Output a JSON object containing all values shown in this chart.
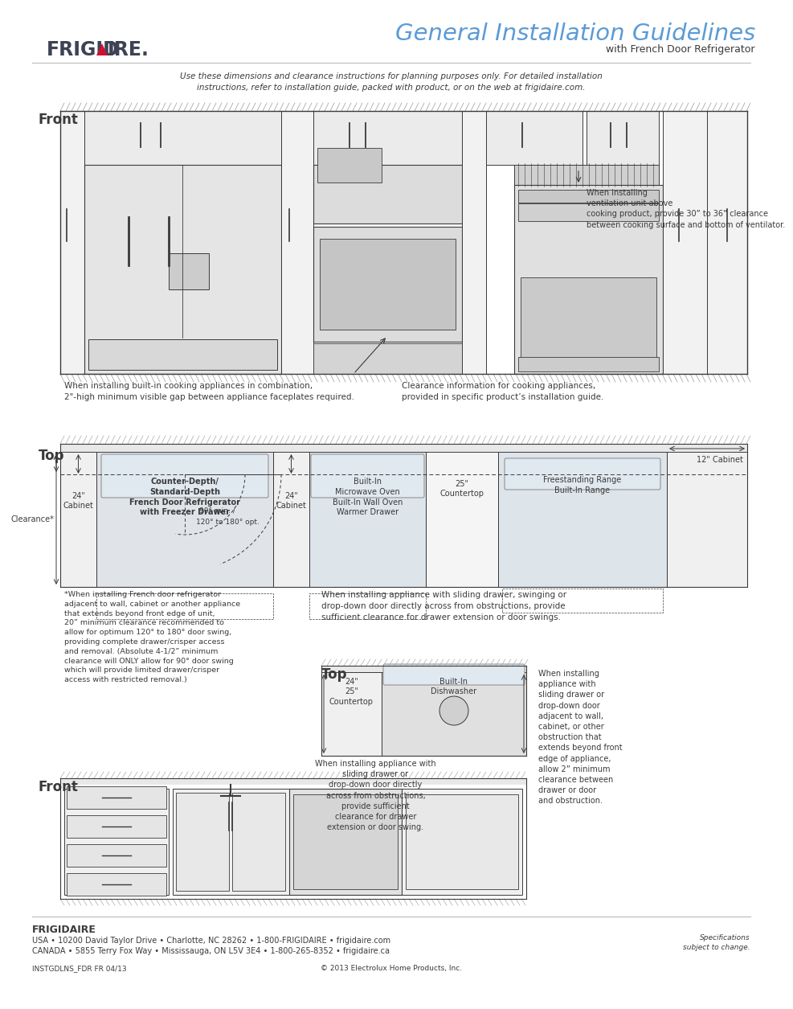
{
  "title": "General Installation Guidelines",
  "subtitle": "with French Door Refrigerator",
  "page_note": "Use these dimensions and clearance instructions for planning purposes only. For detailed installation\ninstructions, refer to installation guide, packed with product, or on the web at frigidaire.com.",
  "front_label": "Front",
  "top_label": "Top",
  "front_label2": "Front",
  "top_label2": "Top",
  "caption1": "When installing built-in cooking appliances in combination,\n2\"-high minimum visible gap between appliance faceplates required.",
  "caption2": "Clearance information for cooking appliances,\nprovided in specific product’s installation guide.",
  "caption_vent": "When installing\nventilation unit above\ncooking product, provide 30” to 36” clearance\nbetween cooking surface and bottom of ventilator.",
  "top_note1": "Counter-Depth/\nStandard-Depth\nFrench Door Refrigerator\nwith Freezer Drawer",
  "top_24cab1": "24\"\nCabinet",
  "top_24cab2": "24\"\nCabinet",
  "top_bioven": "Built-In\nMicrowave Oven\nBuilt-In Wall Oven\nWarmer Drawer",
  "top_25ct": "25\"\nCountertop",
  "top_fsr": "Freestanding Range\nBuilt-In Range",
  "top_12cab": "12\" Cabinet",
  "clearance_label": "Clearance*",
  "angle_label1": "90° min. /",
  "angle_label2": "120° to 180° opt.",
  "footnote_star": "*When installing French door refrigerator\nadjacent to wall, cabinet or another appliance\nthat extends beyond front edge of unit,\n20” minimum clearance recommended to\nallow for optimum 120° to 180° door swing,\nproviding complete drawer/crisper access\nand removal. (Absolute 4-1/2” minimum\nclearance will ONLY allow for 90° door swing\nwhich will provide limited drawer/crisper\naccess with restricted removal.)",
  "sliding_note": "When installing appliance with sliding drawer, swinging or\ndrop-down door directly across from obstructions, provide\nsufficient clearance for drawer extension or door swings.",
  "dishwasher_label": "Built-In\nDishwasher",
  "countertop_label": "24\"\n25\"\nCountertop",
  "dishwasher_note": "When installing appliance with\nsliding drawer or\ndrop-down door directly\nacross from obstructions,\nprovide sufficient\nclearance for drawer\nextension or door swing.",
  "side_note": "When installing\nappliance with\nsliding drawer or\ndrop-down door\nadjacent to wall,\ncabinet, or other\nobstruction that\nextends beyond front\nedge of appliance,\nallow 2” minimum\nclearance between\ndrawer or door\nand obstruction.",
  "footer_brand": "FRIGIDAIRE",
  "footer_usa": "USA • 10200 David Taylor Drive • Charlotte, NC 28262 • 1-800-FRIGIDAIRE • frigidaire.com",
  "footer_canada": "CANADA • 5855 Terry Fox Way • Mississauga, ON L5V 3E4 • 1-800-265-8352 • frigidaire.ca",
  "footer_code": "INSTGDLNS_FDR FR 04/13",
  "footer_copy": "© 2013 Electrolux Home Products, Inc.",
  "footer_spec": "Specifications\nsubject to change.",
  "bg_color": "#ffffff",
  "text_color": "#3a3a3a",
  "title_color": "#5b9bd5",
  "logo_color": "#3d4355",
  "line_color": "#3a3a3a",
  "red_color": "#cc1133"
}
